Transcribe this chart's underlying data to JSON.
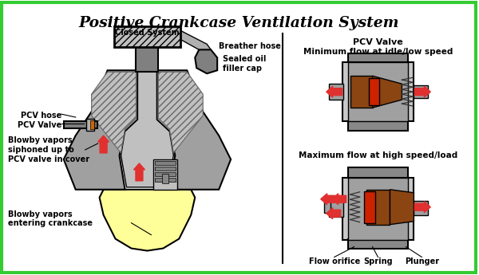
{
  "title": "Positive Crankcase Ventilation System",
  "bg_color": "#ffffff",
  "border_color": "#33cc33",
  "title_color": "#000000",
  "gray1": "#a0a0a0",
  "gray2": "#808080",
  "gray3": "#c0c0c0",
  "gray4": "#b0b0b0",
  "brown": "#8B4513",
  "red_part": "#cc2200",
  "red_arrow": "#e03030",
  "yellow": "#ffff99",
  "labels": {
    "closed_system": "Closed System",
    "pcv_hose": "PCV hose",
    "pcv_valve_eng": "PCV Valve",
    "breather_hose": "Breather hose",
    "sealed_oil": "Sealed oil\nfiller cap",
    "blowby1": "Blowby vapors\nsiphoned up to\nPCV valve in cover",
    "blowby2": "Blowby vapors\nentering crankcase",
    "pcv_valve_label": "PCV Valve",
    "min_flow": "Minimum flow at idle/low speed",
    "max_flow": "Maximum flow at high speed/load",
    "flow_orifice": "Flow orifice",
    "spring": "Spring",
    "plunger": "Plunger"
  }
}
